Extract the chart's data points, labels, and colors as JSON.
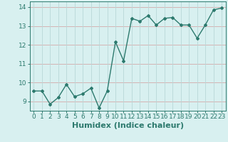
{
  "x": [
    0,
    1,
    2,
    3,
    4,
    5,
    6,
    7,
    8,
    9,
    10,
    11,
    12,
    13,
    14,
    15,
    16,
    17,
    18,
    19,
    20,
    21,
    22,
    23
  ],
  "y": [
    9.55,
    9.55,
    8.85,
    9.2,
    9.9,
    9.25,
    9.4,
    9.7,
    8.65,
    9.55,
    12.15,
    11.15,
    13.4,
    13.25,
    13.55,
    13.05,
    13.4,
    13.45,
    13.05,
    13.05,
    12.35,
    13.05,
    13.85,
    13.95
  ],
  "line_color": "#2d7a6e",
  "marker": "D",
  "marker_size": 2.0,
  "xlabel": "Humidex (Indice chaleur)",
  "xlabel_fontsize": 8,
  "xlim": [
    -0.5,
    23.5
  ],
  "ylim": [
    8.5,
    14.3
  ],
  "yticks": [
    9,
    10,
    11,
    12,
    13,
    14
  ],
  "xticks": [
    0,
    1,
    2,
    3,
    4,
    5,
    6,
    7,
    8,
    9,
    10,
    11,
    12,
    13,
    14,
    15,
    16,
    17,
    18,
    19,
    20,
    21,
    22,
    23
  ],
  "xtick_labels": [
    "0",
    "1",
    "2",
    "3",
    "4",
    "5",
    "6",
    "7",
    "8",
    "9",
    "10",
    "11",
    "12",
    "13",
    "14",
    "15",
    "16",
    "17",
    "18",
    "19",
    "20",
    "21",
    "22",
    "23"
  ],
  "grid_color_h": "#d4aaaa",
  "grid_color_v": "#b8d8d8",
  "bg_color": "#d8f0f0",
  "tick_color": "#2d7a6e",
  "tick_fontsize": 6.5,
  "linewidth": 1.0
}
